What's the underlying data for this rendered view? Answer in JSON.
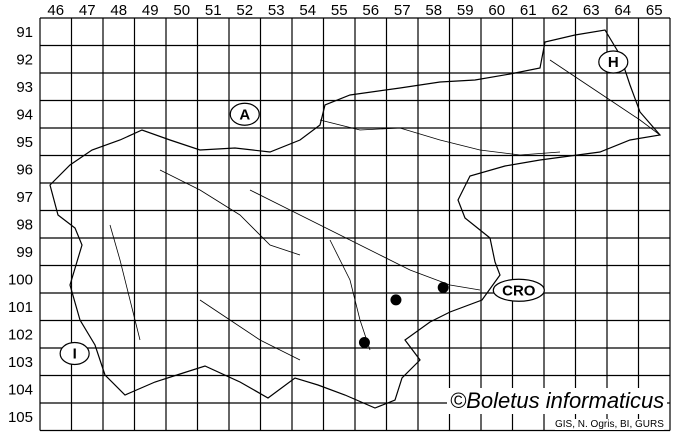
{
  "map": {
    "columns": [
      "46",
      "47",
      "48",
      "49",
      "50",
      "51",
      "52",
      "53",
      "54",
      "55",
      "56",
      "57",
      "58",
      "59",
      "60",
      "61",
      "62",
      "63",
      "64",
      "65"
    ],
    "rows": [
      "91",
      "92",
      "93",
      "94",
      "95",
      "96",
      "97",
      "98",
      "99",
      "100",
      "101",
      "102",
      "103",
      "104",
      "105"
    ],
    "neighbours": [
      {
        "label": "A",
        "col": 52.5,
        "row": 94.5
      },
      {
        "label": "H",
        "col": 64.2,
        "row": 92.6
      },
      {
        "label": "CRO",
        "col": 61.2,
        "row": 100.9
      },
      {
        "label": "I",
        "col": 47.1,
        "row": 103.2
      }
    ],
    "records": [
      {
        "col": 57.3,
        "row": 101.25
      },
      {
        "col": 58.8,
        "row": 100.8
      },
      {
        "col": 56.3,
        "row": 102.8
      }
    ],
    "colors": {
      "lines": "#000000",
      "record": "#000000",
      "background": "#ffffff"
    }
  },
  "copyright": "©Boletus informaticus",
  "credit": "GIS, N. Ogris, BI, GURS"
}
